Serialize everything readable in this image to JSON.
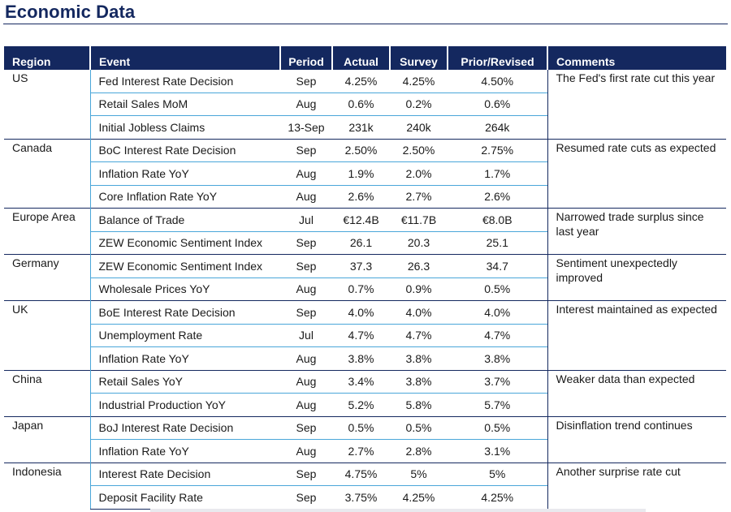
{
  "title": "Economic Data",
  "columns": [
    "Region",
    "Event",
    "Period",
    "Actual",
    "Survey",
    "Prior/Revised",
    "Comments"
  ],
  "groups": [
    {
      "region": "US",
      "comment": "The Fed's first rate cut this year",
      "rows": [
        {
          "event": "Fed Interest Rate Decision",
          "period": "Sep",
          "actual": "4.25%",
          "survey": "4.25%",
          "prior": "4.50%"
        },
        {
          "event": "Retail Sales MoM",
          "period": "Aug",
          "actual": "0.6%",
          "survey": "0.2%",
          "prior": "0.6%"
        },
        {
          "event": "Initial Jobless Claims",
          "period": "13-Sep",
          "actual": "231k",
          "survey": "240k",
          "prior": "264k"
        }
      ]
    },
    {
      "region": "Canada",
      "comment": "Resumed rate cuts as expected",
      "rows": [
        {
          "event": "BoC Interest Rate Decision",
          "period": "Sep",
          "actual": "2.50%",
          "survey": "2.50%",
          "prior": "2.75%"
        },
        {
          "event": "Inflation Rate YoY",
          "period": "Aug",
          "actual": "1.9%",
          "survey": "2.0%",
          "prior": "1.7%"
        },
        {
          "event": "Core Inflation Rate YoY",
          "period": "Aug",
          "actual": "2.6%",
          "survey": "2.7%",
          "prior": "2.6%"
        }
      ]
    },
    {
      "region": "Europe Area",
      "comment": "Narrowed trade surplus since last year",
      "rows": [
        {
          "event": "Balance of Trade",
          "period": "Jul",
          "actual": "€12.4B",
          "survey": "€11.7B",
          "prior": "€8.0B"
        },
        {
          "event": "ZEW Economic Sentiment Index",
          "period": "Sep",
          "actual": "26.1",
          "survey": "20.3",
          "prior": "25.1"
        }
      ]
    },
    {
      "region": "Germany",
      "comment": "Sentiment unexpectedly improved",
      "rows": [
        {
          "event": "ZEW Economic Sentiment Index",
          "period": "Sep",
          "actual": "37.3",
          "survey": "26.3",
          "prior": "34.7"
        },
        {
          "event": "Wholesale Prices YoY",
          "period": "Aug",
          "actual": "0.7%",
          "survey": "0.9%",
          "prior": "0.5%"
        }
      ]
    },
    {
      "region": "UK",
      "comment": "Interest maintained as expected",
      "rows": [
        {
          "event": "BoE Interest Rate Decision",
          "period": "Sep",
          "actual": "4.0%",
          "survey": "4.0%",
          "prior": "4.0%"
        },
        {
          "event": "Unemployment Rate",
          "period": "Jul",
          "actual": "4.7%",
          "survey": "4.7%",
          "prior": "4.7%"
        },
        {
          "event": "Inflation Rate YoY",
          "period": "Aug",
          "actual": "3.8%",
          "survey": "3.8%",
          "prior": "3.8%"
        }
      ]
    },
    {
      "region": "China",
      "comment": "Weaker data than expected",
      "rows": [
        {
          "event": "Retail Sales YoY",
          "period": "Aug",
          "actual": "3.4%",
          "survey": "3.8%",
          "prior": "3.7%"
        },
        {
          "event": "Industrial Production YoY",
          "period": "Aug",
          "actual": "5.2%",
          "survey": "5.8%",
          "prior": "5.7%"
        }
      ]
    },
    {
      "region": "Japan",
      "comment": "Disinflation trend continues",
      "rows": [
        {
          "event": "BoJ Interest Rate Decision",
          "period": "Sep",
          "actual": "0.5%",
          "survey": "0.5%",
          "prior": "0.5%"
        },
        {
          "event": "Inflation Rate YoY",
          "period": "Aug",
          "actual": "2.7%",
          "survey": "2.8%",
          "prior": "3.1%"
        }
      ]
    },
    {
      "region": "Indonesia",
      "comment": "Another surprise rate cut",
      "rows": [
        {
          "event": "Interest Rate Decision",
          "period": "Sep",
          "actual": "4.75%",
          "survey": "5%",
          "prior": "5%"
        },
        {
          "event": "Deposit Facility Rate",
          "period": "Sep",
          "actual": "3.75%",
          "survey": "4.25%",
          "prior": "4.25%"
        }
      ]
    }
  ],
  "colors": {
    "header_bg": "#14285f",
    "header_text": "#ffffff",
    "title": "#14285f",
    "row_divider": "#4aa6d9",
    "group_divider": "#14285f"
  }
}
